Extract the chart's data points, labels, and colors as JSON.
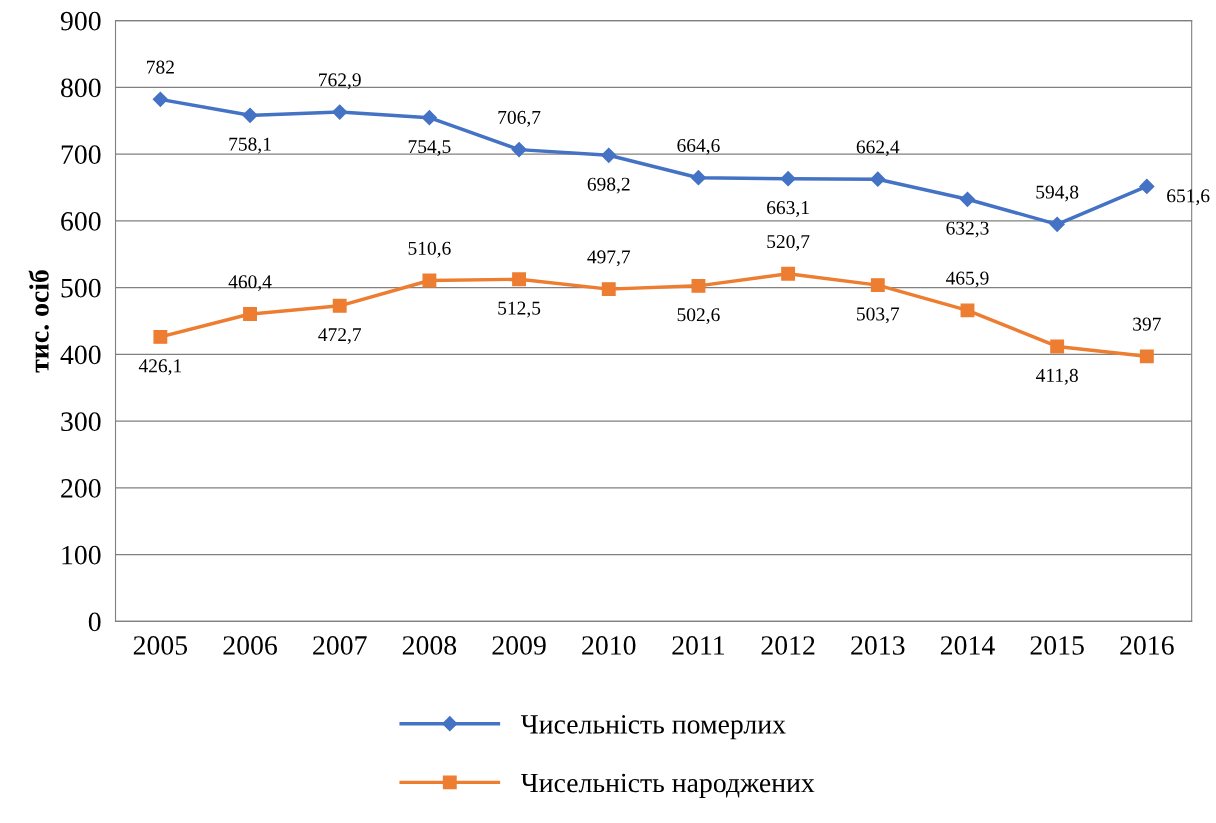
{
  "chart_data": {
    "type": "line",
    "ylabel": "тис. осіб",
    "categories": [
      "2005",
      "2006",
      "2007",
      "2008",
      "2009",
      "2010",
      "2011",
      "2012",
      "2013",
      "2014",
      "2015",
      "2016"
    ],
    "series": [
      {
        "name": "Чисельність померлих",
        "color": "#4472c4",
        "marker": "diamond",
        "values": [
          782,
          758.1,
          762.9,
          754.5,
          706.7,
          698.2,
          664.6,
          663.1,
          662.4,
          632.3,
          594.8,
          651.6
        ],
        "value_labels": [
          "782",
          "758,1",
          "762,9",
          "754,5",
          "706,7",
          "698,2",
          "664,6",
          "663,1",
          "662,4",
          "632,3",
          "594,8",
          "651,6"
        ]
      },
      {
        "name": "Чисельність народжених",
        "color": "#ed7d31",
        "marker": "square",
        "values": [
          426.1,
          460.4,
          472.7,
          510.6,
          512.5,
          497.7,
          502.6,
          520.7,
          503.7,
          465.9,
          411.8,
          397
        ],
        "value_labels": [
          "426,1",
          "460,4",
          "472,7",
          "510,6",
          "512,5",
          "497,7",
          "502,6",
          "520,7",
          "503,7",
          "465,9",
          "411,8",
          "397"
        ]
      }
    ],
    "ylim": [
      0,
      900
    ],
    "yticks": [
      0,
      100,
      200,
      300,
      400,
      500,
      600,
      700,
      800,
      900
    ],
    "grid": "y",
    "legend": "bottom",
    "line_style": "solid"
  }
}
